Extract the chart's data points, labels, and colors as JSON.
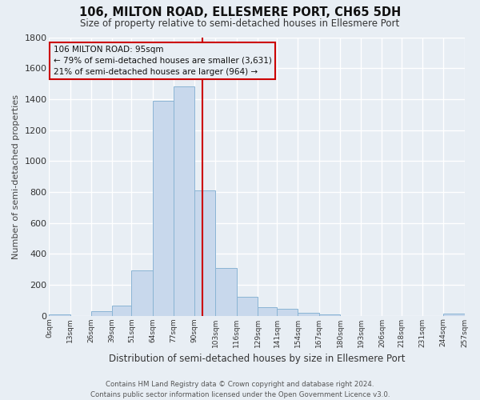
{
  "title": "106, MILTON ROAD, ELLESMERE PORT, CH65 5DH",
  "subtitle": "Size of property relative to semi-detached houses in Ellesmere Port",
  "xlabel": "Distribution of semi-detached houses by size in Ellesmere Port",
  "ylabel": "Number of semi-detached properties",
  "footer_line1": "Contains HM Land Registry data © Crown copyright and database right 2024.",
  "footer_line2": "Contains public sector information licensed under the Open Government Licence v3.0.",
  "annotation_title": "106 MILTON ROAD: 95sqm",
  "annotation_line1": "← 79% of semi-detached houses are smaller (3,631)",
  "annotation_line2": "21% of semi-detached houses are larger (964) →",
  "property_size": 95,
  "bin_edges": [
    0,
    13,
    26,
    39,
    51,
    64,
    77,
    90,
    103,
    116,
    129,
    141,
    154,
    167,
    180,
    193,
    206,
    218,
    231,
    244,
    257
  ],
  "bin_counts": [
    10,
    0,
    30,
    65,
    290,
    1390,
    1480,
    810,
    310,
    120,
    55,
    45,
    20,
    10,
    0,
    0,
    0,
    0,
    0,
    15
  ],
  "bar_color": "#c8d8ec",
  "bar_edgecolor": "#8ab4d4",
  "vline_color": "#cc0000",
  "annotation_box_edgecolor": "#cc0000",
  "background_color": "#e8eef4",
  "plot_bg_color": "#e8eef4",
  "grid_color": "#ffffff",
  "ylim": [
    0,
    1800
  ],
  "yticks": [
    0,
    200,
    400,
    600,
    800,
    1000,
    1200,
    1400,
    1600,
    1800
  ],
  "tick_labels": [
    "0sqm",
    "13sqm",
    "26sqm",
    "39sqm",
    "51sqm",
    "64sqm",
    "77sqm",
    "90sqm",
    "103sqm",
    "116sqm",
    "129sqm",
    "141sqm",
    "154sqm",
    "167sqm",
    "180sqm",
    "193sqm",
    "206sqm",
    "218sqm",
    "231sqm",
    "244sqm",
    "257sqm"
  ]
}
